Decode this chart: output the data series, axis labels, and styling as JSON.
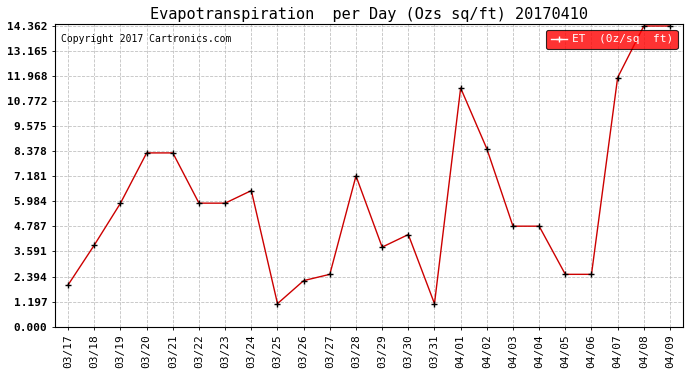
{
  "title": "Evapotranspiration  per Day (Ozs sq/ft) 20170410",
  "copyright": "Copyright 2017 Cartronics.com",
  "legend_label": "ET  (0z/sq  ft)",
  "x_labels": [
    "03/17",
    "03/18",
    "03/19",
    "03/20",
    "03/21",
    "03/22",
    "03/23",
    "03/24",
    "03/25",
    "03/26",
    "03/27",
    "03/28",
    "03/29",
    "03/30",
    "03/31",
    "04/01",
    "04/02",
    "04/03",
    "04/04",
    "04/05",
    "04/06",
    "04/07",
    "04/08",
    "04/09"
  ],
  "y_values": [
    2.0,
    3.9,
    5.9,
    8.3,
    8.3,
    5.9,
    5.9,
    6.5,
    1.1,
    2.2,
    2.5,
    7.2,
    3.8,
    4.4,
    1.1,
    11.4,
    8.5,
    4.8,
    4.8,
    2.5,
    2.5,
    11.9,
    14.362,
    14.362
  ],
  "y_ticks": [
    0.0,
    1.197,
    2.394,
    3.591,
    4.787,
    5.984,
    7.181,
    8.378,
    9.575,
    10.772,
    11.968,
    13.165,
    14.362
  ],
  "line_color": "#cc0000",
  "marker_color": "#000000",
  "bg_color": "#ffffff",
  "grid_color": "#bbbbbb",
  "title_fontsize": 11,
  "copyright_fontsize": 7,
  "tick_fontsize": 8,
  "legend_fontsize": 8,
  "ylim_min": 0.0,
  "ylim_max": 14.362
}
